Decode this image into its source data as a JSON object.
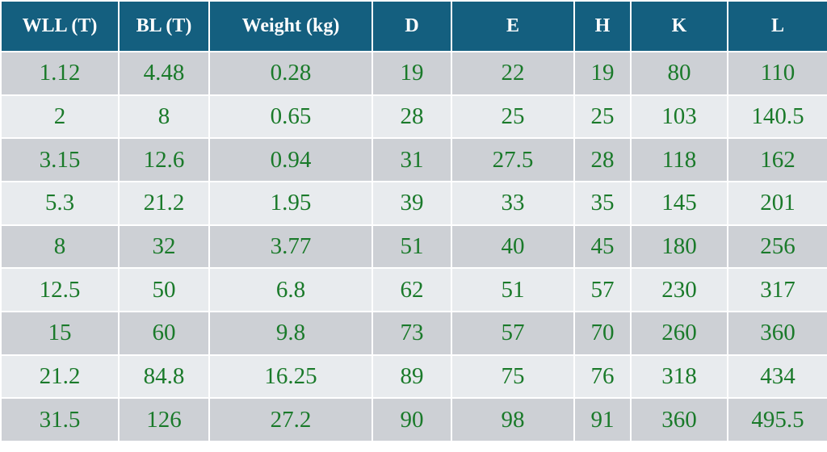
{
  "table": {
    "headers": [
      "WLL (T)",
      "BL (T)",
      "Weight (kg)",
      "D",
      "E",
      "H",
      "K",
      "L"
    ],
    "rows": [
      [
        "1.12",
        "4.48",
        "0.28",
        "19",
        "22",
        "19",
        "80",
        "110"
      ],
      [
        "2",
        "8",
        "0.65",
        "28",
        "25",
        "25",
        "103",
        "140.5"
      ],
      [
        "3.15",
        "12.6",
        "0.94",
        "31",
        "27.5",
        "28",
        "118",
        "162"
      ],
      [
        "5.3",
        "21.2",
        "1.95",
        "39",
        "33",
        "35",
        "145",
        "201"
      ],
      [
        "8",
        "32",
        "3.77",
        "51",
        "40",
        "45",
        "180",
        "256"
      ],
      [
        "12.5",
        "50",
        "6.8",
        "62",
        "51",
        "57",
        "230",
        "317"
      ],
      [
        "15",
        "60",
        "9.8",
        "73",
        "57",
        "70",
        "260",
        "360"
      ],
      [
        "21.2",
        "84.8",
        "16.25",
        "89",
        "75",
        "76",
        "318",
        "434"
      ],
      [
        "31.5",
        "126",
        "27.2",
        "90",
        "98",
        "91",
        "360",
        "495.5"
      ]
    ]
  },
  "colors": {
    "header_background": "#145f7f",
    "header_text": "#ffffff",
    "cell_text": "#1a7a2a",
    "row_dark": "#cdd0d5",
    "row_light": "#e8ebee"
  }
}
